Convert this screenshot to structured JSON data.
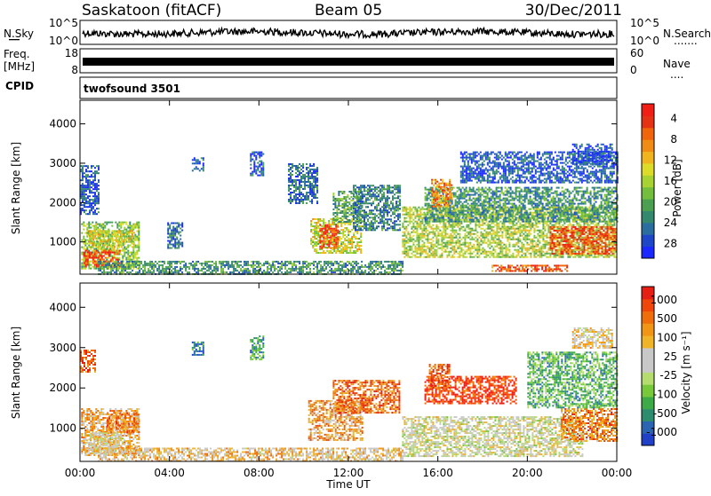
{
  "header": {
    "station": "Saskatoon (fitACF)",
    "beam": "Beam 05",
    "date": "30/Dec/2011"
  },
  "nsky_panel": {
    "left_label": "N.Sky",
    "right_label": "N.Search",
    "right_dots": ".......",
    "yticks_left": [
      "10^5",
      "10^0"
    ],
    "yticks_right": [
      "10^5",
      "10^0"
    ]
  },
  "freq_panel": {
    "left_label_1": "Freq.",
    "left_label_2": "[MHz]",
    "right_label": "Nave",
    "right_dots": "....",
    "yticks_left": [
      "18",
      "8"
    ],
    "yticks_right": [
      "60",
      "0"
    ]
  },
  "cpid_panel": {
    "label": "CPID",
    "value": "twofsound 3501"
  },
  "chart_data": [
    {
      "type": "heatmap",
      "name": "power",
      "ylabel": "Slant Range [km]",
      "ylim": [
        180,
        4600
      ],
      "yticks": [
        1000,
        2000,
        3000,
        4000
      ],
      "xlim": [
        0,
        24
      ],
      "colorbar": {
        "label": "Power [dB]",
        "ticks": [
          "4",
          "8",
          "12",
          "16",
          "20",
          "24",
          "28"
        ],
        "colors": [
          "#1a28ff",
          "#1e46c8",
          "#2a6ea0",
          "#34886e",
          "#4aa050",
          "#73be3c",
          "#a8d232",
          "#dcdc28",
          "#f0b41e",
          "#f08c14",
          "#f0640a",
          "#e63214",
          "#f01e14"
        ]
      },
      "regions": [
        {
          "t0": 0.05,
          "t1": 2.6,
          "r0": 320,
          "r1": 1520,
          "v": 0.45
        },
        {
          "t0": 0.15,
          "t1": 1.8,
          "r0": 380,
          "r1": 800,
          "v": 0.85
        },
        {
          "t0": 0.4,
          "t1": 2.4,
          "r0": 850,
          "r1": 1300,
          "v": 0.55
        },
        {
          "t0": 0.0,
          "t1": 0.8,
          "r0": 1700,
          "r1": 2950,
          "v": 0.15
        },
        {
          "t0": 0.8,
          "t1": 14.4,
          "r0": 180,
          "r1": 520,
          "v": 0.3
        },
        {
          "t0": 3.9,
          "t1": 4.6,
          "r0": 850,
          "r1": 1500,
          "v": 0.2
        },
        {
          "t0": 5.0,
          "t1": 5.5,
          "r0": 2800,
          "r1": 3150,
          "v": 0.15
        },
        {
          "t0": 7.6,
          "t1": 8.2,
          "r0": 2700,
          "r1": 3300,
          "v": 0.15
        },
        {
          "t0": 9.3,
          "t1": 10.6,
          "r0": 2000,
          "r1": 3000,
          "v": 0.2
        },
        {
          "t0": 10.3,
          "t1": 12.6,
          "r0": 700,
          "r1": 1600,
          "v": 0.55
        },
        {
          "t0": 10.7,
          "t1": 11.5,
          "r0": 850,
          "r1": 1450,
          "v": 0.9
        },
        {
          "t0": 11.3,
          "t1": 12.6,
          "r0": 1500,
          "r1": 2300,
          "v": 0.35
        },
        {
          "t0": 12.2,
          "t1": 14.3,
          "r0": 1300,
          "r1": 2450,
          "v": 0.25
        },
        {
          "t0": 14.4,
          "t1": 24.0,
          "r0": 600,
          "r1": 1900,
          "v": 0.5
        },
        {
          "t0": 15.4,
          "t1": 24.0,
          "r0": 1500,
          "r1": 2400,
          "v": 0.3
        },
        {
          "t0": 15.7,
          "t1": 16.6,
          "r0": 1900,
          "r1": 2600,
          "v": 0.75
        },
        {
          "t0": 18.4,
          "t1": 21.8,
          "r0": 250,
          "r1": 420,
          "v": 0.85
        },
        {
          "t0": 21.0,
          "t1": 24.0,
          "r0": 700,
          "r1": 1400,
          "v": 0.85
        },
        {
          "t0": 17.0,
          "t1": 24.0,
          "r0": 2500,
          "r1": 3300,
          "v": 0.15
        },
        {
          "t0": 22.0,
          "t1": 23.8,
          "r0": 3000,
          "r1": 3500,
          "v": 0.1
        }
      ]
    },
    {
      "type": "heatmap",
      "name": "velocity",
      "ylabel": "Slant Range [km]",
      "ylim": [
        180,
        4600
      ],
      "yticks": [
        1000,
        2000,
        3000,
        4000
      ],
      "xlim": [
        0,
        24
      ],
      "xlabel": "Time UT",
      "xticks": [
        "00:00",
        "04:00",
        "08:00",
        "12:00",
        "16:00",
        "20:00",
        "00:00"
      ],
      "colorbar": {
        "label": "Velocity [m s⁻¹]",
        "ticks": [
          "1000",
          "500",
          "100",
          "25",
          "-25",
          "-100",
          "-500",
          "-1000"
        ],
        "colors": [
          "#2040c8",
          "#2c64b4",
          "#2e8c6e",
          "#3caa46",
          "#78c83c",
          "#b4dc6e",
          "#c8c8c8",
          "#c8c8c8",
          "#f0b428",
          "#f09614",
          "#f06e0a",
          "#f0460a",
          "#e61e14"
        ]
      },
      "regions": [
        {
          "t0": 0.05,
          "t1": 2.6,
          "r0": 320,
          "r1": 1500,
          "v": 0.68
        },
        {
          "t0": 0.2,
          "t1": 2.0,
          "r0": 380,
          "r1": 900,
          "v": 0.55
        },
        {
          "t0": 1.2,
          "t1": 2.6,
          "r0": 900,
          "r1": 1400,
          "v": 0.78
        },
        {
          "t0": 0.0,
          "t1": 0.7,
          "r0": 2400,
          "r1": 2950,
          "v": 0.85
        },
        {
          "t0": 0.8,
          "t1": 14.4,
          "r0": 180,
          "r1": 520,
          "v": 0.62
        },
        {
          "t0": 5.0,
          "t1": 5.5,
          "r0": 2800,
          "r1": 3150,
          "v": 0.2
        },
        {
          "t0": 7.6,
          "t1": 8.2,
          "r0": 2700,
          "r1": 3300,
          "v": 0.25
        },
        {
          "t0": 10.2,
          "t1": 12.6,
          "r0": 700,
          "r1": 1700,
          "v": 0.72
        },
        {
          "t0": 11.3,
          "t1": 14.3,
          "r0": 1400,
          "r1": 2200,
          "v": 0.82
        },
        {
          "t0": 14.4,
          "t1": 22.5,
          "r0": 300,
          "r1": 1300,
          "v": 0.52
        },
        {
          "t0": 15.4,
          "t1": 19.5,
          "r0": 1600,
          "r1": 2300,
          "v": 0.92
        },
        {
          "t0": 15.6,
          "t1": 16.5,
          "r0": 2000,
          "r1": 2600,
          "v": 0.85
        },
        {
          "t0": 21.5,
          "t1": 24.0,
          "r0": 700,
          "r1": 1500,
          "v": 0.78
        },
        {
          "t0": 20.0,
          "t1": 24.0,
          "r0": 1500,
          "r1": 2900,
          "v": 0.3
        },
        {
          "t0": 22.0,
          "t1": 23.8,
          "r0": 3000,
          "r1": 3500,
          "v": 0.6
        }
      ]
    }
  ]
}
